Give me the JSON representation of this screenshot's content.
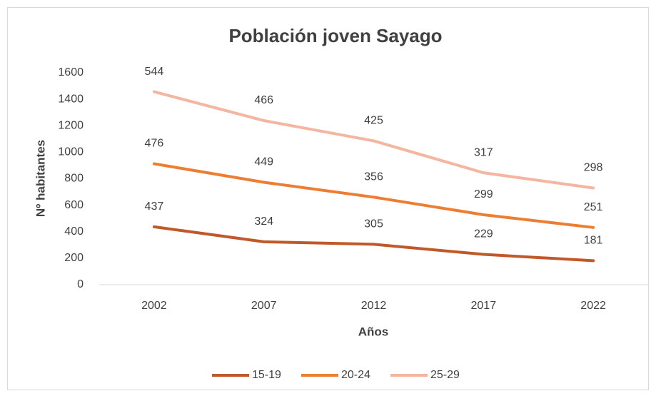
{
  "chart_data": {
    "type": "line",
    "stacked": true,
    "title": "Población joven Sayago",
    "x_label": "Años",
    "y_label": "Nº habitantes",
    "categories": [
      "2002",
      "2007",
      "2012",
      "2017",
      "2022"
    ],
    "series": [
      {
        "name": "15-19",
        "color": "#c0582a",
        "values": [
          437,
          324,
          305,
          229,
          181
        ]
      },
      {
        "name": "20-24",
        "color": "#ed7d31",
        "values": [
          476,
          449,
          356,
          299,
          251
        ]
      },
      {
        "name": "25-29",
        "color": "#f4b6a0",
        "values": [
          544,
          466,
          425,
          317,
          298
        ]
      }
    ],
    "ylim": [
      0,
      1600
    ],
    "yticks": [
      0,
      200,
      400,
      600,
      800,
      1000,
      1200,
      1400,
      1600
    ],
    "grid": false,
    "legend": "bottom",
    "data_labels": true
  }
}
